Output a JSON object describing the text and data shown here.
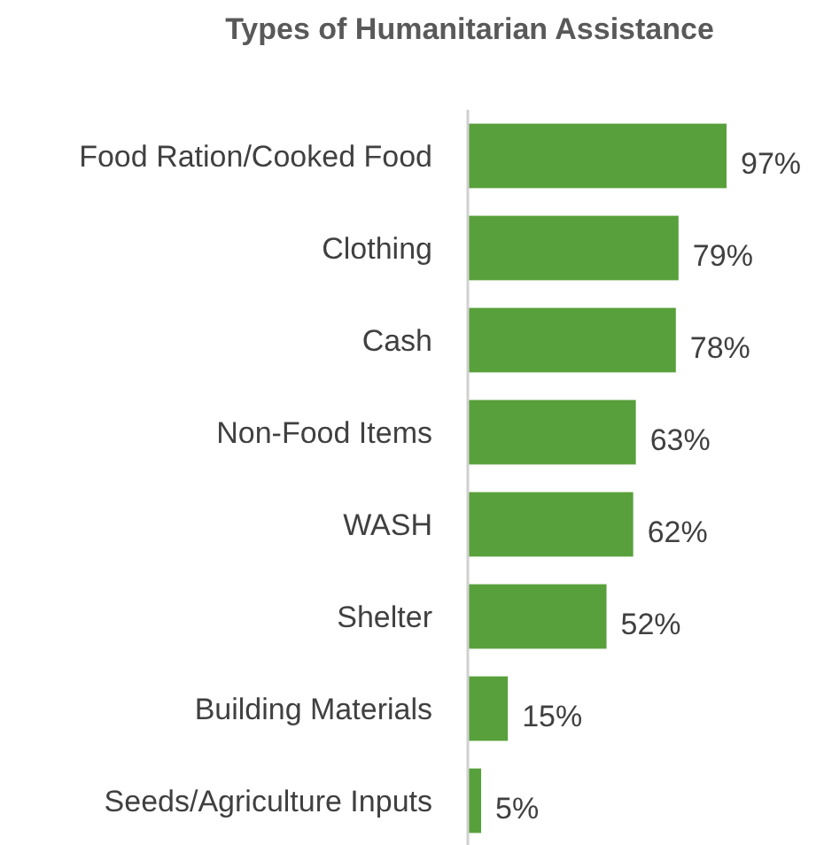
{
  "chart_data": {
    "type": "bar",
    "orientation": "horizontal",
    "title": "Types of Humanitarian Assistance",
    "categories": [
      "Food Ration/Cooked Food",
      "Clothing",
      "Cash",
      "Non-Food Items",
      "WASH",
      "Shelter",
      "Building Materials",
      "Seeds/Agriculture Inputs"
    ],
    "values": [
      97,
      79,
      78,
      63,
      62,
      52,
      15,
      5
    ],
    "value_labels": [
      "97%",
      "79%",
      "78%",
      "63%",
      "62%",
      "52%",
      "15%",
      "5%"
    ],
    "color": "#58a03b"
  }
}
